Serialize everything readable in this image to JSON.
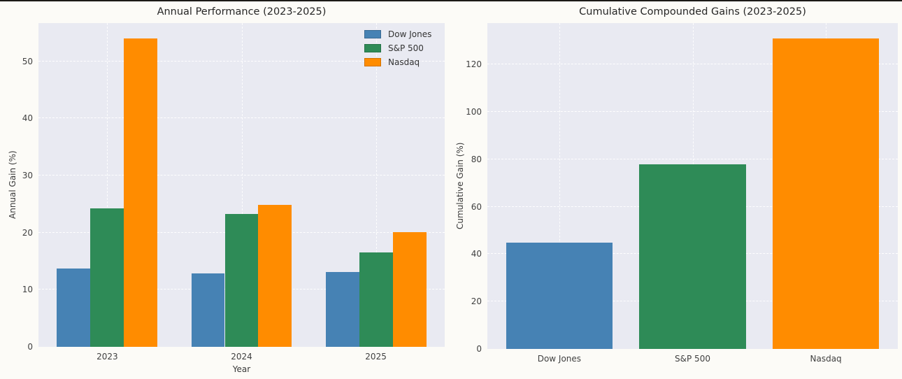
{
  "page": {
    "background_color": "#fcfbf7",
    "axes_background_color": "#e9eaf2",
    "top_border_color": "#1c1a17"
  },
  "chart_data": [
    {
      "type": "bar",
      "title": "Annual Performance (2023-2025)",
      "xlabel": "Year",
      "ylabel": "Annual Gain (%)",
      "categories": [
        "2023",
        "2024",
        "2025"
      ],
      "series": [
        {
          "name": "Dow Jones",
          "color": "#4682b4",
          "values": [
            13.7,
            12.9,
            13.1
          ]
        },
        {
          "name": "S&P 500",
          "color": "#2e8b57",
          "values": [
            24.2,
            23.3,
            16.5
          ]
        },
        {
          "name": "Nasdaq",
          "color": "#ff8c00",
          "values": [
            54.0,
            24.9,
            20.1
          ]
        }
      ],
      "yticks": [
        0,
        10,
        20,
        30,
        40,
        50
      ],
      "ylim": [
        0,
        56.7
      ],
      "grid": true,
      "legend_position": "upper right"
    },
    {
      "type": "bar",
      "title": "Cumulative Compounded Gains (2023-2025)",
      "xlabel": "",
      "ylabel": "Cumulative Gain (%)",
      "categories": [
        "Dow Jones",
        "S&P 500",
        "Nasdaq"
      ],
      "series": [
        {
          "name": "Cumulative Gain",
          "colors": [
            "#4682b4",
            "#2e8b57",
            "#ff8c00"
          ],
          "values": [
            45.0,
            78.0,
            131.0
          ]
        }
      ],
      "yticks": [
        0,
        20,
        40,
        60,
        80,
        100,
        120
      ],
      "ylim": [
        0,
        137.5
      ],
      "grid": true,
      "legend_position": "none"
    }
  ]
}
